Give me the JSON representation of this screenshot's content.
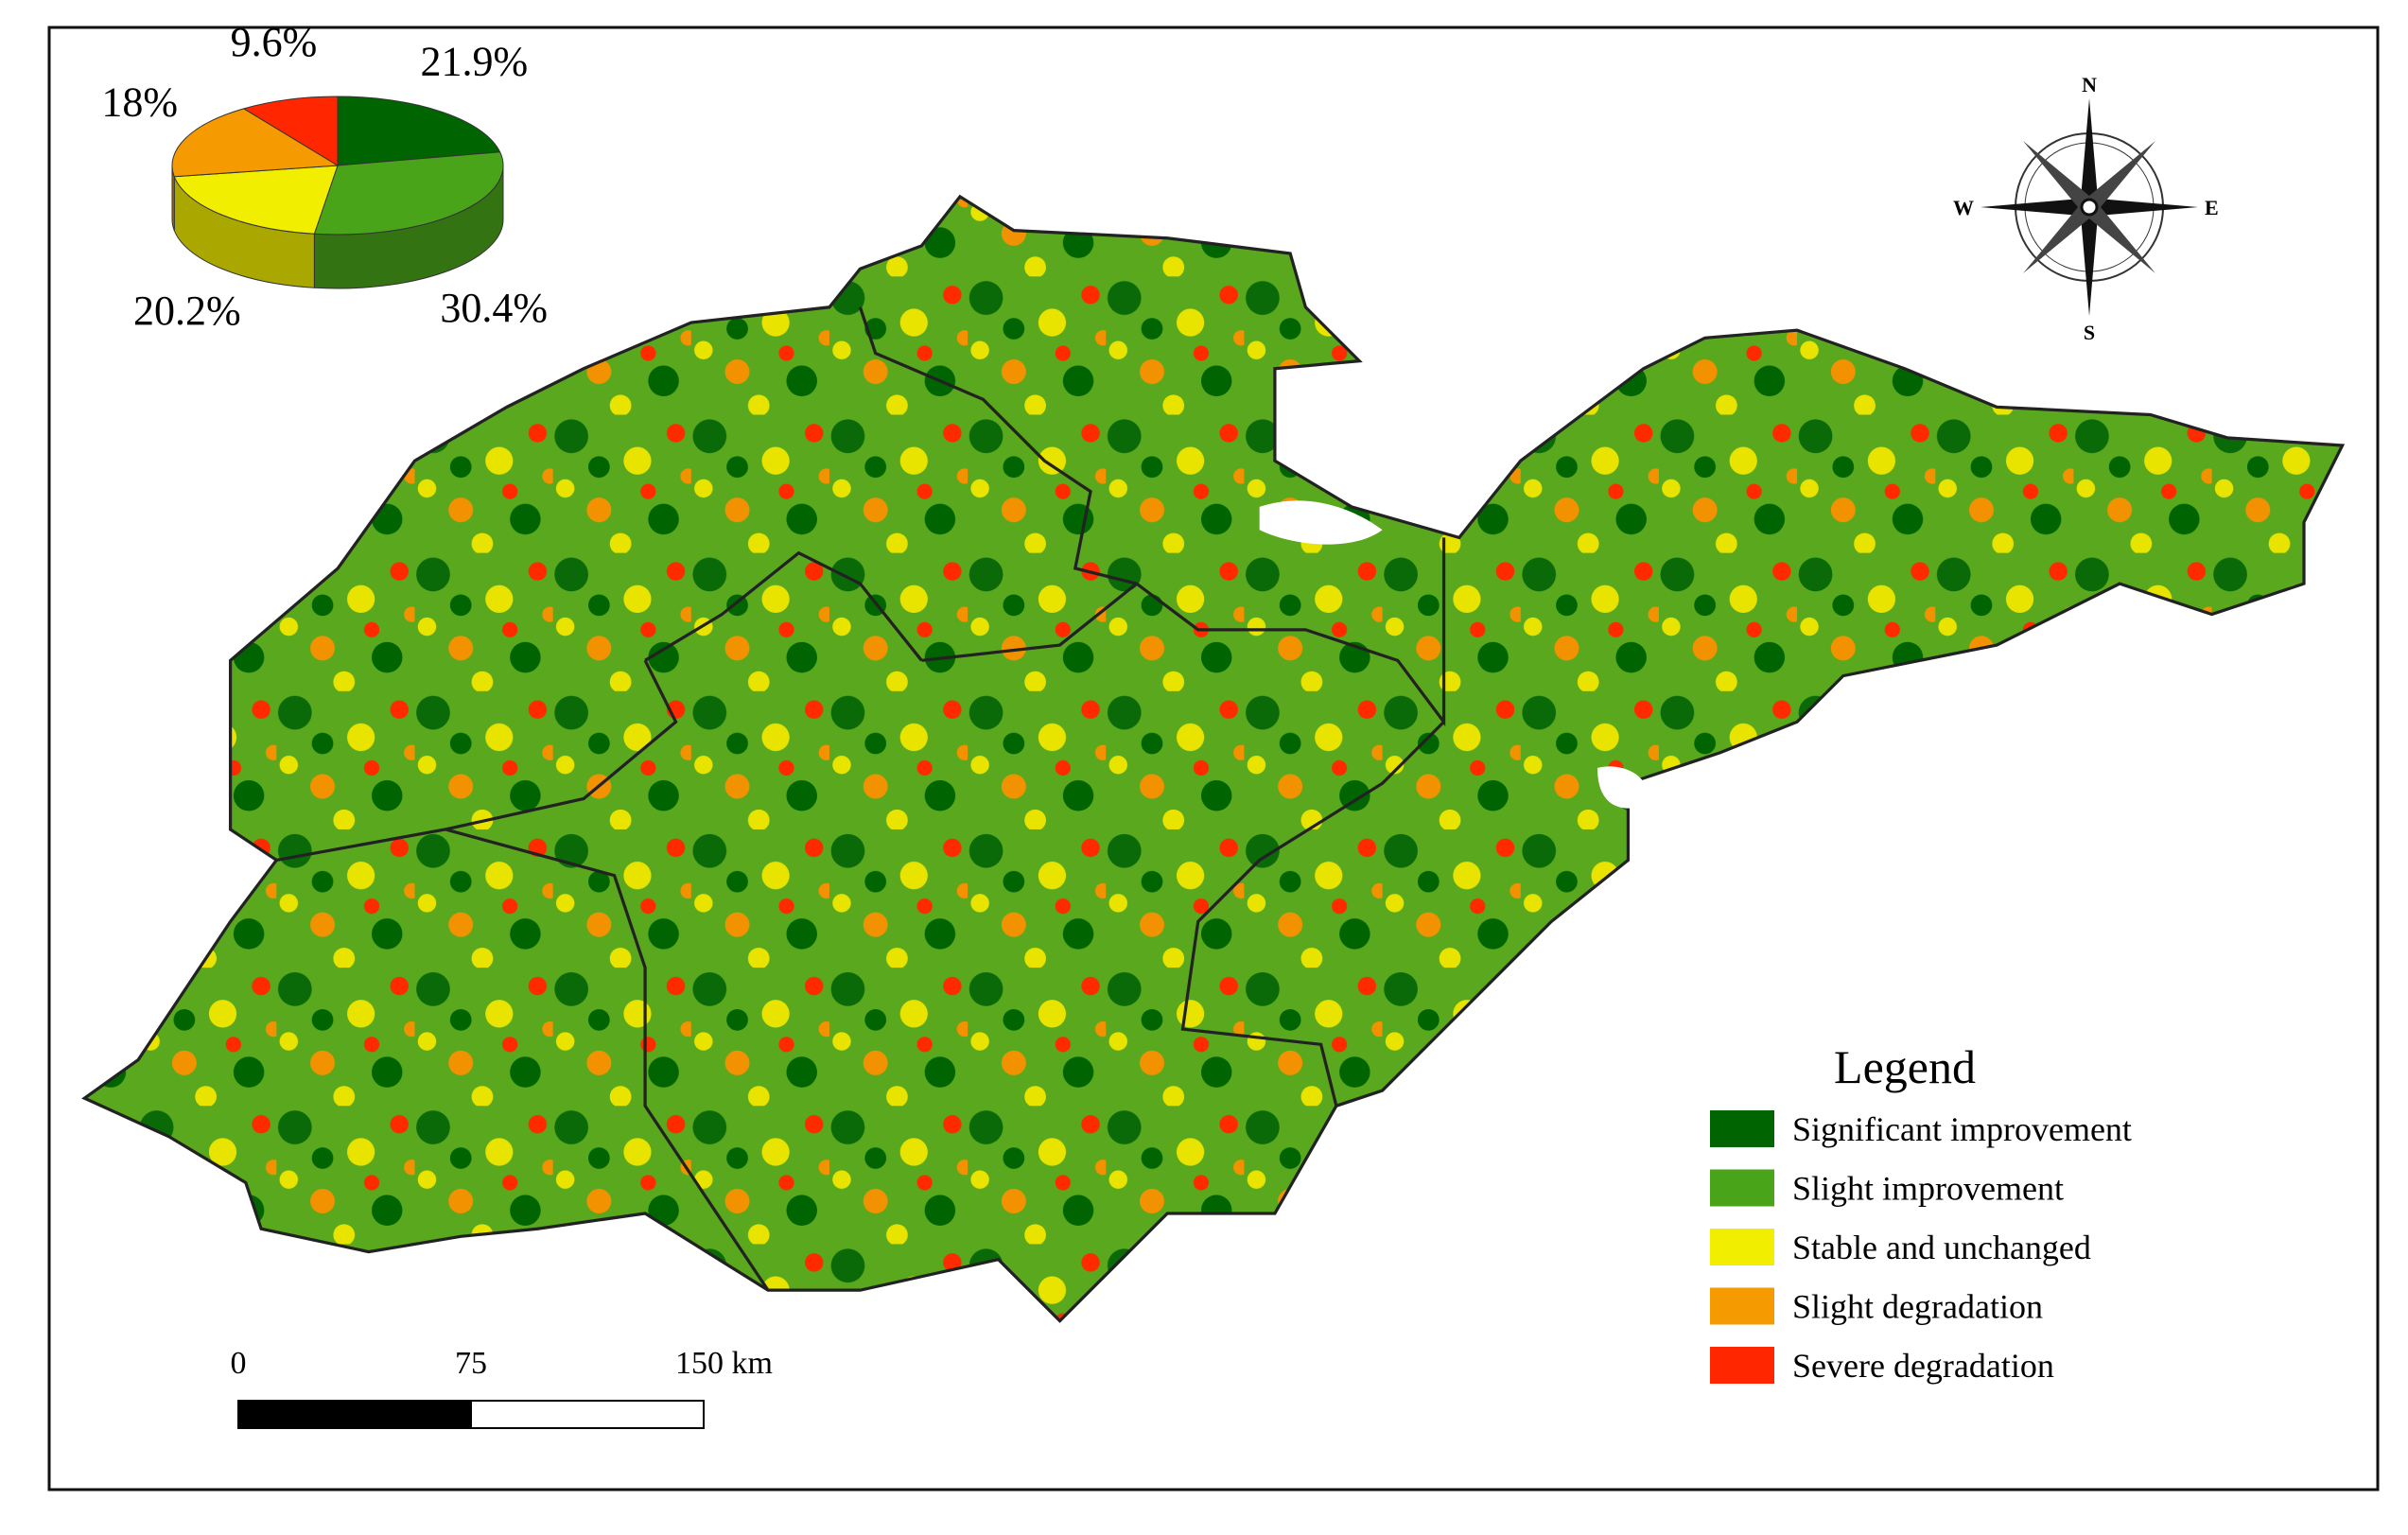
{
  "chart_data": {
    "type": "pie",
    "categories": [
      "Significant improvement",
      "Slight improvement",
      "Stable and unchanged",
      "Slight degradation",
      "Severe degradation"
    ],
    "values": [
      21.9,
      30.4,
      20.2,
      18,
      9.6
    ],
    "value_labels": [
      "21.9%",
      "30.4%",
      "20.2%",
      "18%",
      "9.6%"
    ],
    "colors": [
      "#006400",
      "#4aa41a",
      "#f2ee00",
      "#f59a00",
      "#ff2600"
    ]
  },
  "legend": {
    "title": "Legend"
  },
  "scale_bar": {
    "ticks": [
      0,
      75,
      {
        "value": 150,
        "label": "150 km"
      }
    ]
  },
  "compass": {
    "n": "N",
    "e": "E",
    "s": "S",
    "w": "W"
  }
}
